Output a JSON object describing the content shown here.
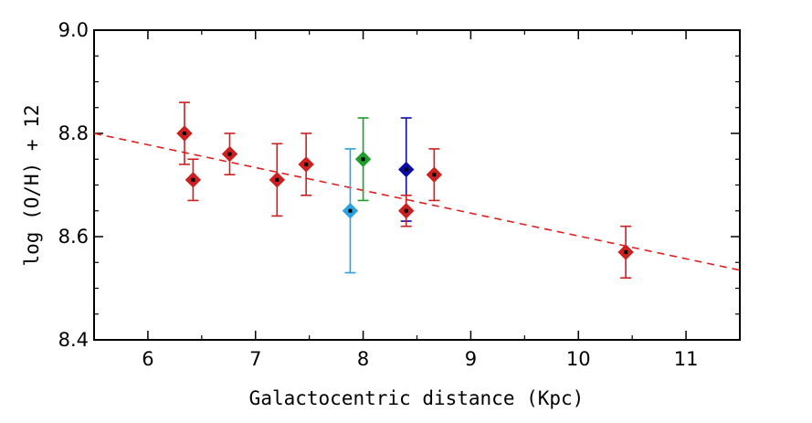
{
  "chart_data": {
    "type": "scatter",
    "title": "",
    "xlabel": "Galactocentric distance (Kpc)",
    "ylabel": "log (O/H) + 12",
    "xlim": [
      5.5,
      11.5
    ],
    "ylim": [
      8.4,
      9.0
    ],
    "xticks": [
      6,
      7,
      8,
      9,
      10,
      11
    ],
    "xtick_labels": [
      "6",
      "7",
      "8",
      "9",
      "10",
      "11"
    ],
    "yticks": [
      8.4,
      8.6,
      8.8,
      9.0
    ],
    "ytick_labels": [
      "8.4",
      "8.6",
      "8.8",
      "9.0"
    ],
    "grid": false,
    "colors": {
      "red": "#cc1f1f",
      "cyan": "#2aa3e0",
      "green": "#1e9e2a",
      "blue": "#0a0aa8",
      "fit": "#e02020",
      "center_dot": "#000000"
    },
    "points": [
      {
        "x": 6.34,
        "y": 8.8,
        "yerr": 0.06,
        "color": "red"
      },
      {
        "x": 6.42,
        "y": 8.71,
        "yerr": 0.04,
        "color": "red"
      },
      {
        "x": 6.76,
        "y": 8.76,
        "yerr": 0.04,
        "color": "red"
      },
      {
        "x": 7.2,
        "y": 8.71,
        "yerr": 0.07,
        "color": "red"
      },
      {
        "x": 7.47,
        "y": 8.74,
        "yerr": 0.06,
        "color": "red"
      },
      {
        "x": 7.88,
        "y": 8.65,
        "yerr": 0.12,
        "color": "cyan"
      },
      {
        "x": 8.0,
        "y": 8.75,
        "yerr": 0.08,
        "color": "green"
      },
      {
        "x": 8.4,
        "y": 8.73,
        "yerr": 0.1,
        "color": "blue"
      },
      {
        "x": 8.4,
        "y": 8.65,
        "yerr": 0.03,
        "color": "red"
      },
      {
        "x": 8.66,
        "y": 8.72,
        "yerr": 0.05,
        "color": "red"
      },
      {
        "x": 10.44,
        "y": 8.57,
        "yerr": 0.05,
        "color": "red"
      }
    ],
    "fit_line": {
      "x": [
        5.5,
        11.5
      ],
      "y": [
        8.8,
        8.535
      ],
      "style": "dashed",
      "color": "fit"
    }
  }
}
